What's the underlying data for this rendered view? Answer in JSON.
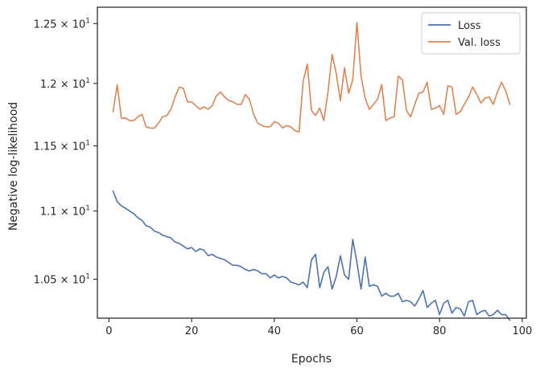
{
  "chart_data": {
    "type": "line",
    "xlabel": "Epochs",
    "ylabel": "Negative log-likelihood",
    "xlim": [
      -2.8,
      101
    ],
    "ylim": [
      10.225,
      12.64
    ],
    "yscale": "log",
    "grid": false,
    "legend_position": "top-right",
    "x_ticks": [
      0,
      20,
      40,
      60,
      80,
      100
    ],
    "x_tick_labels": [
      "0",
      "20",
      "40",
      "60",
      "80",
      "100"
    ],
    "y_ticks": [
      10.5,
      11.0,
      11.5,
      12.0,
      12.5
    ],
    "y_tick_labels": [
      {
        "mantissa": "1.05",
        "sep": "×",
        "base": "10",
        "exp": "1"
      },
      {
        "mantissa": "1.1",
        "sep": "×",
        "base": "10",
        "exp": "1"
      },
      {
        "mantissa": "1.15",
        "sep": "×",
        "base": "10",
        "exp": "1"
      },
      {
        "mantissa": "1.2",
        "sep": "×",
        "base": "10",
        "exp": "1"
      },
      {
        "mantissa": "1.25",
        "sep": "×",
        "base": "10",
        "exp": "1"
      }
    ],
    "series": [
      {
        "name": "Loss",
        "color": "#4c72b0",
        "x_start": 1,
        "values": [
          11.15,
          11.07,
          11.04,
          11.02,
          11.0,
          10.98,
          10.95,
          10.93,
          10.89,
          10.88,
          10.85,
          10.84,
          10.82,
          10.81,
          10.8,
          10.77,
          10.76,
          10.74,
          10.72,
          10.73,
          10.7,
          10.72,
          10.71,
          10.67,
          10.68,
          10.66,
          10.65,
          10.64,
          10.62,
          10.6,
          10.6,
          10.59,
          10.57,
          10.56,
          10.57,
          10.56,
          10.54,
          10.54,
          10.51,
          10.53,
          10.51,
          10.52,
          10.51,
          10.48,
          10.47,
          10.46,
          10.48,
          10.44,
          10.64,
          10.68,
          10.44,
          10.55,
          10.59,
          10.43,
          10.52,
          10.67,
          10.53,
          10.5,
          10.79,
          10.62,
          10.43,
          10.66,
          10.45,
          10.46,
          10.45,
          10.38,
          10.4,
          10.38,
          10.38,
          10.4,
          10.34,
          10.35,
          10.34,
          10.31,
          10.36,
          10.42,
          10.3,
          10.33,
          10.35,
          10.25,
          10.33,
          10.35,
          10.26,
          10.3,
          10.29,
          10.24,
          10.34,
          10.35,
          10.25,
          10.27,
          10.28,
          10.24,
          10.25,
          10.28,
          10.25,
          10.25,
          10.21
        ]
      },
      {
        "name": "Val. loss",
        "color": "#dd8452",
        "x_start": 1,
        "values": [
          11.77,
          11.99,
          11.72,
          11.72,
          11.7,
          11.7,
          11.73,
          11.75,
          11.65,
          11.64,
          11.64,
          11.68,
          11.73,
          11.74,
          11.79,
          11.89,
          11.97,
          11.96,
          11.85,
          11.85,
          11.82,
          11.79,
          11.81,
          11.79,
          11.82,
          11.9,
          11.93,
          11.89,
          11.86,
          11.85,
          11.83,
          11.83,
          11.91,
          11.87,
          11.75,
          11.68,
          11.66,
          11.65,
          11.65,
          11.69,
          11.68,
          11.64,
          11.66,
          11.65,
          11.62,
          11.61,
          12.02,
          12.16,
          11.78,
          11.74,
          11.8,
          11.7,
          11.93,
          12.24,
          12.08,
          11.86,
          12.13,
          11.92,
          12.03,
          12.51,
          12.06,
          11.88,
          11.79,
          11.83,
          11.87,
          11.99,
          11.7,
          11.72,
          11.73,
          12.06,
          12.03,
          11.78,
          11.73,
          11.83,
          11.92,
          11.93,
          12.01,
          11.79,
          11.8,
          11.82,
          11.75,
          11.98,
          11.97,
          11.75,
          11.77,
          11.83,
          11.89,
          11.97,
          11.91,
          11.84,
          11.88,
          11.89,
          11.83,
          11.93,
          12.01,
          11.94,
          11.83
        ]
      }
    ]
  }
}
